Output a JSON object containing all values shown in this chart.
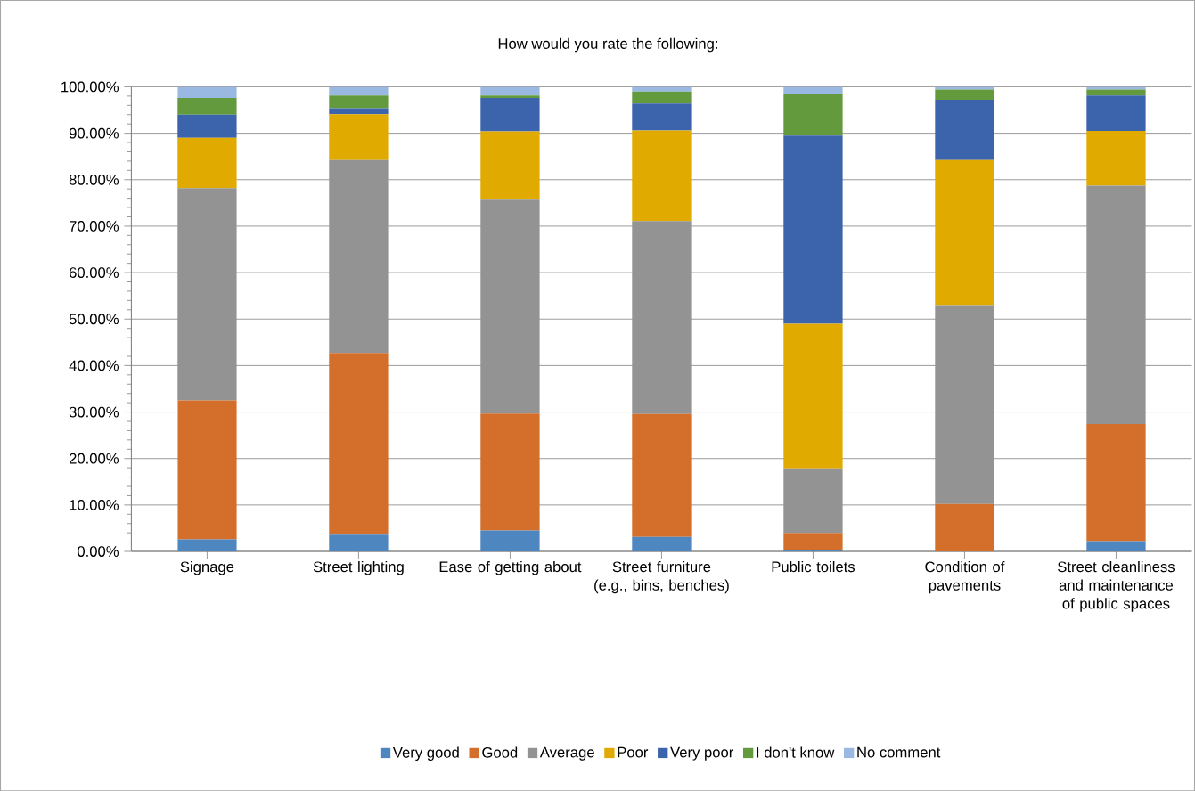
{
  "chart_data": {
    "type": "bar",
    "stacked": true,
    "title": "How would you rate the following:",
    "categories": [
      "Signage",
      "Street lighting",
      "Ease of getting about",
      "Street furniture (e.g., bins, benches)",
      "Public toilets",
      "Condition of pavements",
      "Street cleanliness and maintenance of public spaces"
    ],
    "series": [
      {
        "name": "Very good",
        "color": "#4e86c0",
        "values": [
          2.6,
          3.6,
          4.5,
          3.1,
          0.4,
          0,
          2.2
        ]
      },
      {
        "name": "Good",
        "color": "#d36e2b",
        "values": [
          29.9,
          39.1,
          25.2,
          26.5,
          3.6,
          10.2,
          25.2
        ]
      },
      {
        "name": "Average",
        "color": "#939393",
        "values": [
          45.7,
          41.5,
          46.2,
          41.5,
          13.9,
          42.8,
          51.3
        ]
      },
      {
        "name": "Poor",
        "color": "#e1aa00",
        "values": [
          10.8,
          9.9,
          14.5,
          19.5,
          31.1,
          31.2,
          11.8
        ]
      },
      {
        "name": "Very poor",
        "color": "#3b64ad",
        "values": [
          5.0,
          1.3,
          7.2,
          5.8,
          40.5,
          13.0,
          7.6
        ]
      },
      {
        "name": "I don't know",
        "color": "#649a3e",
        "values": [
          3.6,
          2.7,
          0.5,
          2.6,
          9.0,
          2.2,
          1.3
        ]
      },
      {
        "name": "No comment",
        "color": "#9ab9e2",
        "values": [
          2.4,
          1.9,
          1.9,
          1.0,
          1.5,
          0.6,
          0.6
        ]
      }
    ],
    "ylim": [
      0,
      100
    ],
    "yticks": [
      {
        "value": 0,
        "label": "0.00%"
      },
      {
        "value": 10,
        "label": "10.00%"
      },
      {
        "value": 20,
        "label": "20.00%"
      },
      {
        "value": 30,
        "label": "30.00%"
      },
      {
        "value": 40,
        "label": "40.00%"
      },
      {
        "value": 50,
        "label": "50.00%"
      },
      {
        "value": 60,
        "label": "60.00%"
      },
      {
        "value": 70,
        "label": "70.00%"
      },
      {
        "value": 80,
        "label": "80.00%"
      },
      {
        "value": 90,
        "label": "90.00%"
      },
      {
        "value": 100,
        "label": "100.00%"
      }
    ],
    "grid": "y",
    "legend": "bottom"
  }
}
